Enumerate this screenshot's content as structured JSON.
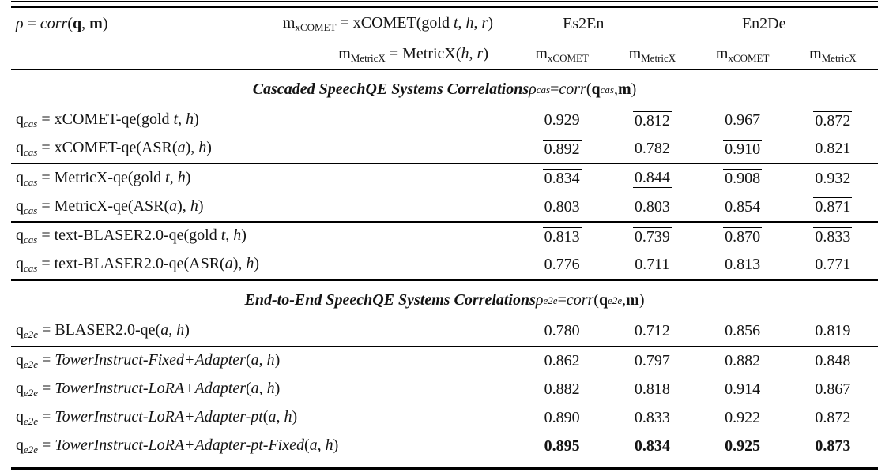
{
  "colors": {
    "background": "#ffffff",
    "text": "#141414",
    "rule": "#000000"
  },
  "table": {
    "header": {
      "rho_formula": [
        {
          "t": "ρ",
          "s": "it"
        },
        {
          "t": " = "
        },
        {
          "t": "corr",
          "s": "it"
        },
        {
          "t": "("
        },
        {
          "t": "q",
          "s": "bf"
        },
        {
          "t": ", "
        },
        {
          "t": "m",
          "s": "bf"
        },
        {
          "t": ")"
        }
      ],
      "metric_def_line1": [
        {
          "t": "m"
        },
        {
          "t": "xCOMET",
          "s": "sub"
        },
        {
          "t": " = xCOMET(gold "
        },
        {
          "t": "t",
          "s": "it"
        },
        {
          "t": ", "
        },
        {
          "t": "h",
          "s": "it"
        },
        {
          "t": ", "
        },
        {
          "t": "r",
          "s": "it"
        },
        {
          "t": ")"
        }
      ],
      "metric_def_line2": [
        {
          "t": "m"
        },
        {
          "t": "MetricX",
          "s": "sub"
        },
        {
          "t": " = MetricX("
        },
        {
          "t": "h",
          "s": "it"
        },
        {
          "t": ", "
        },
        {
          "t": "r",
          "s": "it"
        },
        {
          "t": ")"
        }
      ],
      "group1": "Es2En",
      "group2": "En2De",
      "subcols": [
        [
          {
            "t": "m"
          },
          {
            "t": "xCOMET",
            "s": "sub"
          }
        ],
        [
          {
            "t": "m"
          },
          {
            "t": "MetricX",
            "s": "sub"
          }
        ],
        [
          {
            "t": "m"
          },
          {
            "t": "xCOMET",
            "s": "sub"
          }
        ],
        [
          {
            "t": "m"
          },
          {
            "t": "MetricX",
            "s": "sub"
          }
        ]
      ]
    },
    "sections": [
      {
        "title": [
          {
            "t": "Cascaded SpeechQE Systems Correlations ",
            "s": "bfit"
          },
          {
            "t": "ρ",
            "s": "it"
          },
          {
            "t": "cas",
            "s": "subit"
          },
          {
            "t": " = "
          },
          {
            "t": "corr",
            "s": "it"
          },
          {
            "t": "("
          },
          {
            "t": "q",
            "s": "bf"
          },
          {
            "t": "cas",
            "s": "subit"
          },
          {
            "t": ", "
          },
          {
            "t": "m",
            "s": "bf"
          },
          {
            "t": ")"
          }
        ],
        "groups": [
          {
            "rows": [
              {
                "label": [
                  {
                    "t": "q"
                  },
                  {
                    "t": "cas",
                    "s": "subit"
                  },
                  {
                    "t": " = xCOMET-qe(gold "
                  },
                  {
                    "t": "t",
                    "s": "it"
                  },
                  {
                    "t": ", "
                  },
                  {
                    "t": "h",
                    "s": "it"
                  },
                  {
                    "t": ")"
                  }
                ],
                "values": [
                  {
                    "v": "0.929",
                    "m": "p"
                  },
                  {
                    "v": "0.812",
                    "m": "o"
                  },
                  {
                    "v": "0.967",
                    "m": "p"
                  },
                  {
                    "v": "0.872",
                    "m": "o"
                  }
                ]
              },
              {
                "label": [
                  {
                    "t": "q"
                  },
                  {
                    "t": "cas",
                    "s": "subit"
                  },
                  {
                    "t": " = xCOMET-qe(ASR("
                  },
                  {
                    "t": "a",
                    "s": "it"
                  },
                  {
                    "t": "), "
                  },
                  {
                    "t": "h",
                    "s": "it"
                  },
                  {
                    "t": ")"
                  }
                ],
                "values": [
                  {
                    "v": "0.892",
                    "m": "o"
                  },
                  {
                    "v": "0.782",
                    "m": "p"
                  },
                  {
                    "v": "0.910",
                    "m": "o"
                  },
                  {
                    "v": "0.821",
                    "m": "p"
                  }
                ]
              }
            ]
          },
          {
            "rows": [
              {
                "label": [
                  {
                    "t": "q"
                  },
                  {
                    "t": "cas",
                    "s": "subit"
                  },
                  {
                    "t": " = MetricX-qe(gold "
                  },
                  {
                    "t": "t",
                    "s": "it"
                  },
                  {
                    "t": ", "
                  },
                  {
                    "t": "h",
                    "s": "it"
                  },
                  {
                    "t": ")"
                  }
                ],
                "values": [
                  {
                    "v": "0.834",
                    "m": "o"
                  },
                  {
                    "v": "0.844",
                    "m": "u"
                  },
                  {
                    "v": "0.908",
                    "m": "o"
                  },
                  {
                    "v": "0.932",
                    "m": "p"
                  }
                ]
              },
              {
                "label": [
                  {
                    "t": "q"
                  },
                  {
                    "t": "cas",
                    "s": "subit"
                  },
                  {
                    "t": " = MetricX-qe(ASR("
                  },
                  {
                    "t": "a",
                    "s": "it"
                  },
                  {
                    "t": "), "
                  },
                  {
                    "t": "h",
                    "s": "it"
                  },
                  {
                    "t": ")"
                  }
                ],
                "values": [
                  {
                    "v": "0.803",
                    "m": "p"
                  },
                  {
                    "v": "0.803",
                    "m": "p"
                  },
                  {
                    "v": "0.854",
                    "m": "p"
                  },
                  {
                    "v": "0.871",
                    "m": "o"
                  }
                ]
              }
            ]
          },
          {
            "rows": [
              {
                "label": [
                  {
                    "t": "q"
                  },
                  {
                    "t": "cas",
                    "s": "subit"
                  },
                  {
                    "t": " = text-BLASER2.0-qe(gold "
                  },
                  {
                    "t": "t",
                    "s": "it"
                  },
                  {
                    "t": ", "
                  },
                  {
                    "t": "h",
                    "s": "it"
                  },
                  {
                    "t": ")"
                  }
                ],
                "values": [
                  {
                    "v": "0.813",
                    "m": "o"
                  },
                  {
                    "v": "0.739",
                    "m": "o"
                  },
                  {
                    "v": "0.870",
                    "m": "o"
                  },
                  {
                    "v": "0.833",
                    "m": "o"
                  }
                ]
              },
              {
                "label": [
                  {
                    "t": "q"
                  },
                  {
                    "t": "cas",
                    "s": "subit"
                  },
                  {
                    "t": " = text-BLASER2.0-qe(ASR("
                  },
                  {
                    "t": "a",
                    "s": "it"
                  },
                  {
                    "t": "), "
                  },
                  {
                    "t": "h",
                    "s": "it"
                  },
                  {
                    "t": ")"
                  }
                ],
                "values": [
                  {
                    "v": "0.776",
                    "m": "p"
                  },
                  {
                    "v": "0.711",
                    "m": "p"
                  },
                  {
                    "v": "0.813",
                    "m": "p"
                  },
                  {
                    "v": "0.771",
                    "m": "p"
                  }
                ]
              }
            ]
          }
        ]
      },
      {
        "title": [
          {
            "t": "End-to-End SpeechQE Systems Correlations ",
            "s": "bfit"
          },
          {
            "t": "ρ",
            "s": "it"
          },
          {
            "t": "e2e",
            "s": "subit"
          },
          {
            "t": " = "
          },
          {
            "t": "corr",
            "s": "it"
          },
          {
            "t": "("
          },
          {
            "t": "q",
            "s": "bf"
          },
          {
            "t": "e2e",
            "s": "subit"
          },
          {
            "t": ", "
          },
          {
            "t": "m",
            "s": "bf"
          },
          {
            "t": ")"
          }
        ],
        "groups": [
          {
            "rows": [
              {
                "label": [
                  {
                    "t": "q"
                  },
                  {
                    "t": "e2e",
                    "s": "subit"
                  },
                  {
                    "t": " = BLASER2.0-qe("
                  },
                  {
                    "t": "a",
                    "s": "it"
                  },
                  {
                    "t": ", "
                  },
                  {
                    "t": "h",
                    "s": "it"
                  },
                  {
                    "t": ")"
                  }
                ],
                "values": [
                  {
                    "v": "0.780",
                    "m": "p"
                  },
                  {
                    "v": "0.712",
                    "m": "p"
                  },
                  {
                    "v": "0.856",
                    "m": "p"
                  },
                  {
                    "v": "0.819",
                    "m": "p"
                  }
                ]
              }
            ]
          },
          {
            "rows": [
              {
                "label": [
                  {
                    "t": "q"
                  },
                  {
                    "t": "e2e",
                    "s": "subit"
                  },
                  {
                    "t": " = "
                  },
                  {
                    "t": "TowerInstruct-Fixed+Adapter",
                    "s": "it"
                  },
                  {
                    "t": "("
                  },
                  {
                    "t": "a",
                    "s": "it"
                  },
                  {
                    "t": ", "
                  },
                  {
                    "t": "h",
                    "s": "it"
                  },
                  {
                    "t": ")"
                  }
                ],
                "values": [
                  {
                    "v": "0.862",
                    "m": "p"
                  },
                  {
                    "v": "0.797",
                    "m": "p"
                  },
                  {
                    "v": "0.882",
                    "m": "p"
                  },
                  {
                    "v": "0.848",
                    "m": "p"
                  }
                ]
              },
              {
                "label": [
                  {
                    "t": "q"
                  },
                  {
                    "t": "e2e",
                    "s": "subit"
                  },
                  {
                    "t": " = "
                  },
                  {
                    "t": "TowerInstruct-LoRA+Adapter",
                    "s": "it"
                  },
                  {
                    "t": "("
                  },
                  {
                    "t": "a",
                    "s": "it"
                  },
                  {
                    "t": ", "
                  },
                  {
                    "t": "h",
                    "s": "it"
                  },
                  {
                    "t": ")"
                  }
                ],
                "values": [
                  {
                    "v": "0.882",
                    "m": "p"
                  },
                  {
                    "v": "0.818",
                    "m": "p"
                  },
                  {
                    "v": "0.914",
                    "m": "p"
                  },
                  {
                    "v": "0.867",
                    "m": "p"
                  }
                ]
              },
              {
                "label": [
                  {
                    "t": "q"
                  },
                  {
                    "t": "e2e",
                    "s": "subit"
                  },
                  {
                    "t": " = "
                  },
                  {
                    "t": "TowerInstruct-LoRA+Adapter-pt",
                    "s": "it"
                  },
                  {
                    "t": "("
                  },
                  {
                    "t": "a",
                    "s": "it"
                  },
                  {
                    "t": ", "
                  },
                  {
                    "t": "h",
                    "s": "it"
                  },
                  {
                    "t": ")"
                  }
                ],
                "values": [
                  {
                    "v": "0.890",
                    "m": "p"
                  },
                  {
                    "v": "0.833",
                    "m": "p"
                  },
                  {
                    "v": "0.922",
                    "m": "p"
                  },
                  {
                    "v": "0.872",
                    "m": "p"
                  }
                ]
              },
              {
                "label": [
                  {
                    "t": "q"
                  },
                  {
                    "t": "e2e",
                    "s": "subit"
                  },
                  {
                    "t": " = "
                  },
                  {
                    "t": "TowerInstruct-LoRA+Adapter-pt-Fixed",
                    "s": "it"
                  },
                  {
                    "t": "("
                  },
                  {
                    "t": "a",
                    "s": "it"
                  },
                  {
                    "t": ", "
                  },
                  {
                    "t": "h",
                    "s": "it"
                  },
                  {
                    "t": ")"
                  }
                ],
                "values": [
                  {
                    "v": "0.895",
                    "m": "p",
                    "b": true
                  },
                  {
                    "v": "0.834",
                    "m": "p",
                    "b": true
                  },
                  {
                    "v": "0.925",
                    "m": "p",
                    "b": true
                  },
                  {
                    "v": "0.873",
                    "m": "p",
                    "b": true
                  }
                ]
              }
            ]
          }
        ]
      }
    ]
  }
}
